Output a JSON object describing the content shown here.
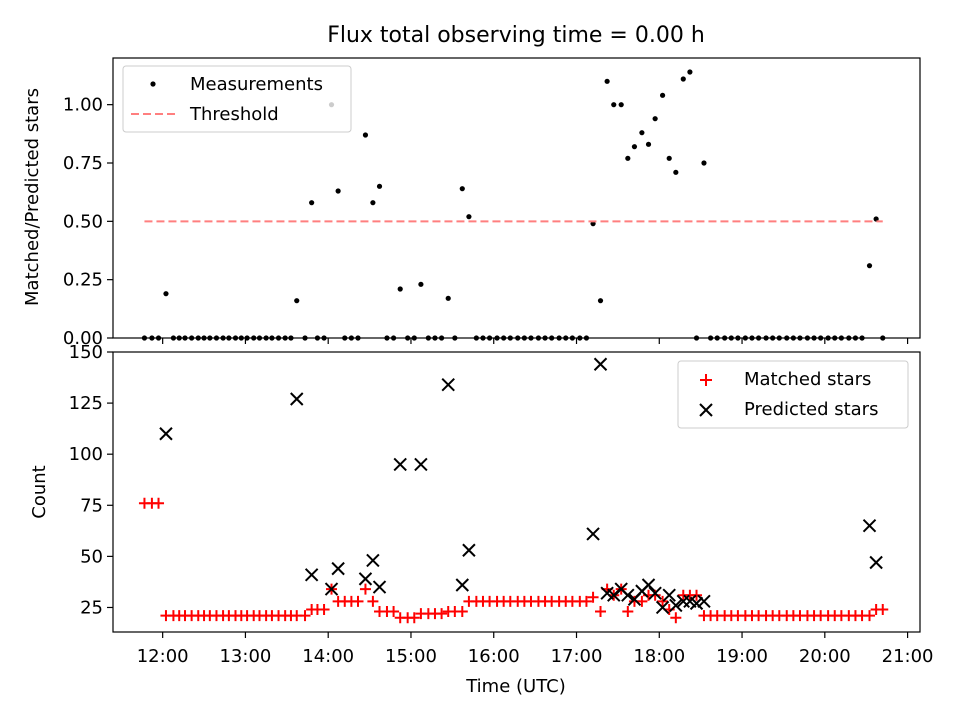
{
  "figure": {
    "title": "Flux total observing time = 0.00 h",
    "xlabel": "Time (UTC)"
  },
  "chart_data": [
    {
      "type": "scatter",
      "panel": "top",
      "ylabel": "Matched/Predicted stars",
      "xlim": [
        11.4,
        21.15
      ],
      "ylim": [
        0,
        1.2
      ],
      "y_ticks": [
        0.0,
        0.25,
        0.5,
        0.75,
        1.0
      ],
      "y_tick_labels": [
        "0.00",
        "0.25",
        "0.50",
        "0.75",
        "1.00"
      ],
      "x_ticks": [
        12,
        13,
        14,
        15,
        16,
        17,
        18,
        19,
        20,
        21
      ],
      "legend": {
        "location": "top-left"
      },
      "series": [
        {
          "name": "Measurements",
          "kind": "points",
          "color": "#000000",
          "x": [
            11.78,
            11.87,
            11.95,
            12.04,
            12.13,
            12.2,
            12.27,
            12.35,
            12.43,
            12.5,
            12.57,
            12.65,
            12.73,
            12.8,
            12.88,
            12.95,
            13.02,
            13.1,
            13.17,
            13.25,
            13.32,
            13.4,
            13.48,
            13.55,
            13.62,
            13.72,
            13.8,
            13.87,
            13.95,
            14.04,
            14.12,
            14.2,
            14.28,
            14.36,
            14.45,
            14.54,
            14.62,
            14.71,
            14.79,
            14.87,
            14.96,
            15.04,
            15.12,
            15.21,
            15.29,
            15.37,
            15.45,
            15.53,
            15.62,
            15.7,
            15.79,
            15.87,
            15.95,
            16.04,
            16.12,
            16.2,
            16.29,
            16.37,
            16.45,
            16.54,
            16.62,
            16.7,
            16.79,
            16.87,
            16.95,
            17.04,
            17.12,
            17.2,
            17.29,
            17.37,
            17.45,
            17.54,
            17.62,
            17.7,
            17.79,
            17.87,
            17.95,
            18.04,
            18.12,
            18.2,
            18.29,
            18.37,
            18.45,
            18.54,
            18.62,
            18.7,
            18.79,
            18.87,
            18.95,
            19.04,
            19.12,
            19.2,
            19.29,
            19.37,
            19.45,
            19.54,
            19.62,
            19.7,
            19.79,
            19.87,
            19.95,
            20.04,
            20.12,
            20.2,
            20.29,
            20.37,
            20.45,
            20.54,
            20.62,
            20.7
          ],
          "y": [
            0,
            0,
            0,
            0.19,
            0,
            0,
            0,
            0,
            0,
            0,
            0,
            0,
            0,
            0,
            0,
            0,
            0,
            0,
            0,
            0,
            0,
            0,
            0,
            0,
            0.16,
            0,
            0.58,
            0,
            0,
            1.0,
            0.63,
            0,
            0,
            0,
            0.87,
            0.58,
            0.65,
            0,
            0,
            0.21,
            0,
            0,
            0.23,
            0,
            0,
            0,
            0.17,
            0,
            0.64,
            0.52,
            0,
            0,
            0,
            0,
            0,
            0,
            0,
            0,
            0,
            0,
            0,
            0,
            0,
            0,
            0,
            0,
            0,
            0.49,
            0.16,
            1.1,
            1.0,
            1.0,
            0.77,
            0.82,
            0.88,
            0.83,
            0.94,
            1.04,
            0.77,
            0.71,
            1.11,
            1.14,
            0,
            0.75,
            0,
            0,
            0,
            0,
            0,
            0,
            0,
            0,
            0,
            0,
            0,
            0,
            0,
            0,
            0,
            0,
            0,
            0,
            0,
            0,
            0,
            0,
            0,
            0.31,
            0.51,
            0
          ]
        },
        {
          "name": "Threshold",
          "kind": "dashed-line",
          "color": "#ff7f7f",
          "x": [
            11.78,
            20.7
          ],
          "y": [
            0.5,
            0.5
          ]
        }
      ]
    },
    {
      "type": "scatter",
      "panel": "bottom",
      "ylabel": "Count",
      "xlim": [
        11.4,
        21.15
      ],
      "ylim": [
        13,
        150
      ],
      "y_ticks": [
        25,
        50,
        75,
        100,
        125,
        150
      ],
      "y_tick_labels": [
        "25",
        "50",
        "75",
        "100",
        "125",
        "150"
      ],
      "x_ticks": [
        12,
        13,
        14,
        15,
        16,
        17,
        18,
        19,
        20,
        21
      ],
      "x_tick_labels": [
        "12:00",
        "13:00",
        "14:00",
        "15:00",
        "16:00",
        "17:00",
        "18:00",
        "19:00",
        "20:00",
        "21:00"
      ],
      "legend": {
        "location": "top-right"
      },
      "series": [
        {
          "name": "Matched stars",
          "marker": "plus",
          "color": "#ff0000",
          "x": [
            11.78,
            11.87,
            11.95,
            12.04,
            12.13,
            12.2,
            12.27,
            12.35,
            12.43,
            12.5,
            12.57,
            12.65,
            12.73,
            12.8,
            12.88,
            12.95,
            13.02,
            13.1,
            13.17,
            13.25,
            13.32,
            13.4,
            13.48,
            13.55,
            13.62,
            13.72,
            13.8,
            13.87,
            13.95,
            14.04,
            14.12,
            14.2,
            14.28,
            14.36,
            14.45,
            14.54,
            14.62,
            14.71,
            14.79,
            14.87,
            14.96,
            15.04,
            15.12,
            15.21,
            15.29,
            15.37,
            15.45,
            15.53,
            15.62,
            15.7,
            15.79,
            15.87,
            15.95,
            16.04,
            16.12,
            16.2,
            16.29,
            16.37,
            16.45,
            16.54,
            16.62,
            16.7,
            16.79,
            16.87,
            16.95,
            17.04,
            17.12,
            17.2,
            17.29,
            17.37,
            17.45,
            17.54,
            17.62,
            17.7,
            17.79,
            17.87,
            17.95,
            18.04,
            18.12,
            18.2,
            18.29,
            18.37,
            18.45,
            18.54,
            18.62,
            18.7,
            18.79,
            18.87,
            18.95,
            19.04,
            19.12,
            19.2,
            19.29,
            19.37,
            19.45,
            19.54,
            19.62,
            19.7,
            19.79,
            19.87,
            19.95,
            20.04,
            20.12,
            20.2,
            20.29,
            20.37,
            20.45,
            20.54,
            20.62,
            20.7
          ],
          "y": [
            76,
            76,
            76,
            21,
            21,
            21,
            21,
            21,
            21,
            21,
            21,
            21,
            21,
            21,
            21,
            21,
            21,
            21,
            21,
            21,
            21,
            21,
            21,
            21,
            21,
            21,
            24,
            24,
            24,
            34,
            28,
            28,
            28,
            28,
            34,
            28,
            23,
            23,
            23,
            20,
            20,
            20,
            22,
            22,
            22,
            22,
            23,
            23,
            23,
            28,
            28,
            28,
            28,
            28,
            28,
            28,
            28,
            28,
            28,
            28,
            28,
            28,
            28,
            28,
            28,
            28,
            28,
            30,
            23,
            34,
            31,
            34,
            23,
            28,
            28,
            31,
            31,
            28,
            24,
            20,
            31,
            31,
            31,
            21,
            21,
            21,
            21,
            21,
            21,
            21,
            21,
            21,
            21,
            21,
            21,
            21,
            21,
            21,
            21,
            21,
            21,
            21,
            21,
            21,
            21,
            21,
            21,
            21,
            24,
            24
          ]
        },
        {
          "name": "Predicted stars",
          "marker": "x",
          "color": "#000000",
          "x": [
            12.04,
            13.62,
            13.8,
            14.04,
            14.12,
            14.45,
            14.54,
            14.62,
            14.87,
            15.12,
            15.45,
            15.62,
            15.7,
            17.2,
            17.29,
            17.37,
            17.45,
            17.54,
            17.62,
            17.7,
            17.79,
            17.87,
            17.95,
            18.04,
            18.12,
            18.2,
            18.29,
            18.37,
            18.45,
            18.54,
            20.54,
            20.62
          ],
          "y": [
            110,
            127,
            41,
            34,
            44,
            39,
            48,
            35,
            95,
            95,
            134,
            36,
            53,
            61,
            144,
            32,
            31,
            34,
            31,
            29,
            33,
            36,
            32,
            25,
            31,
            26,
            28,
            28,
            27,
            28,
            65,
            47
          ]
        }
      ]
    }
  ]
}
